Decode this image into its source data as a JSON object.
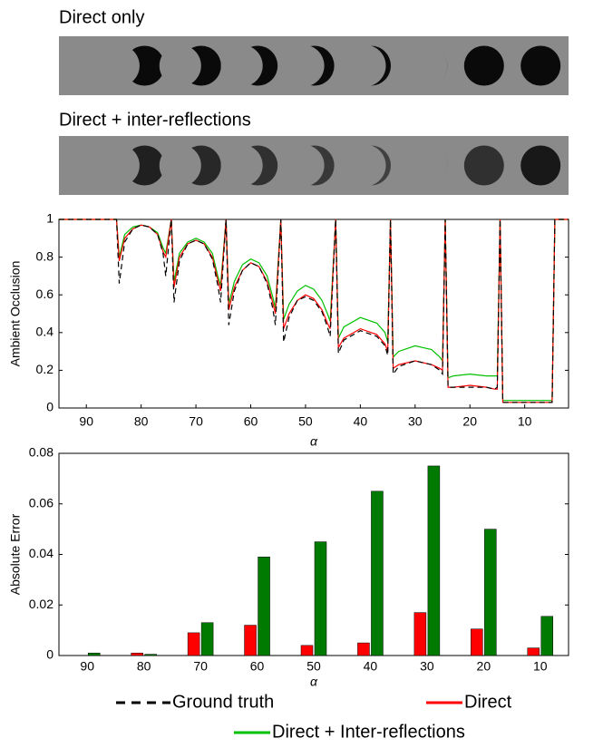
{
  "strips": [
    "Direct only",
    "Direct + inter-reflections"
  ],
  "chart_data": [
    {
      "type": "line",
      "xlabel": "α",
      "ylabel": "Ambient Occlusion",
      "xlim": [
        95,
        2
      ],
      "xticks": [
        90,
        80,
        70,
        60,
        50,
        40,
        30,
        20,
        10
      ],
      "ylim": [
        0,
        1
      ],
      "yticks": [
        0,
        0.2,
        0.4,
        0.6,
        0.8,
        1
      ],
      "grid": false,
      "x": [
        95,
        84.5,
        84,
        83,
        81.5,
        80,
        78.5,
        77,
        76,
        75.5,
        74.5,
        74,
        73,
        71.5,
        70,
        68.5,
        67,
        66,
        65.5,
        64.5,
        64,
        63,
        61.5,
        60,
        58.5,
        57,
        56,
        55.5,
        54.5,
        54,
        53,
        51.5,
        50,
        48.5,
        47,
        46,
        45.5,
        44.5,
        44,
        43,
        40,
        37,
        35.5,
        35,
        34.5,
        34,
        33,
        30,
        27,
        25.5,
        25,
        24.5,
        24,
        23,
        20,
        17,
        15.5,
        15,
        14.5,
        14,
        13,
        10,
        7,
        5,
        4.5,
        2
      ],
      "series": [
        {
          "name": "Ground truth",
          "color": "#000000",
          "dashed": true,
          "values": [
            1,
            1,
            0.66,
            0.88,
            0.95,
            0.97,
            0.96,
            0.92,
            0.82,
            0.7,
            1,
            0.56,
            0.78,
            0.87,
            0.89,
            0.87,
            0.79,
            0.65,
            0.56,
            1,
            0.44,
            0.62,
            0.73,
            0.77,
            0.75,
            0.66,
            0.53,
            0.44,
            1,
            0.35,
            0.48,
            0.57,
            0.59,
            0.57,
            0.51,
            0.43,
            0.38,
            1,
            0.29,
            0.36,
            0.41,
            0.38,
            0.33,
            0.28,
            1,
            0.18,
            0.22,
            0.25,
            0.23,
            0.2,
            0.18,
            1,
            0.11,
            0.11,
            0.11,
            0.11,
            0.1,
            0.11,
            1,
            0.03,
            0.03,
            0.03,
            0.03,
            0.03,
            1,
            1
          ]
        },
        {
          "name": "Direct",
          "color": "#ff0000",
          "dashed": false,
          "values": [
            1,
            1,
            0.78,
            0.9,
            0.95,
            0.97,
            0.96,
            0.92,
            0.83,
            0.8,
            1,
            0.64,
            0.8,
            0.87,
            0.89,
            0.87,
            0.8,
            0.68,
            0.62,
            1,
            0.52,
            0.64,
            0.73,
            0.77,
            0.75,
            0.67,
            0.56,
            0.5,
            1,
            0.42,
            0.5,
            0.57,
            0.6,
            0.58,
            0.52,
            0.45,
            0.42,
            1,
            0.32,
            0.37,
            0.42,
            0.39,
            0.34,
            0.3,
            1,
            0.21,
            0.23,
            0.25,
            0.23,
            0.21,
            0.2,
            1,
            0.11,
            0.11,
            0.12,
            0.11,
            0.1,
            0.1,
            1,
            0.03,
            0.03,
            0.03,
            0.03,
            0.03,
            1,
            1
          ]
        },
        {
          "name": "Direct + Inter-reflections",
          "color": "#00c000",
          "dashed": false,
          "values": [
            1,
            1,
            0.8,
            0.92,
            0.96,
            0.97,
            0.96,
            0.93,
            0.85,
            0.82,
            1,
            0.67,
            0.82,
            0.88,
            0.9,
            0.88,
            0.82,
            0.7,
            0.65,
            1,
            0.55,
            0.67,
            0.76,
            0.79,
            0.77,
            0.7,
            0.59,
            0.53,
            1,
            0.47,
            0.55,
            0.62,
            0.65,
            0.63,
            0.57,
            0.5,
            0.46,
            1,
            0.37,
            0.43,
            0.48,
            0.45,
            0.4,
            0.35,
            1,
            0.27,
            0.3,
            0.33,
            0.31,
            0.27,
            0.25,
            1,
            0.16,
            0.17,
            0.18,
            0.17,
            0.17,
            0.17,
            1,
            0.04,
            0.04,
            0.04,
            0.04,
            0.04,
            1,
            1
          ]
        }
      ]
    },
    {
      "type": "bar",
      "xlabel": "α",
      "ylabel": "Absolute Error",
      "categories": [
        "90",
        "80",
        "70",
        "60",
        "50",
        "40",
        "30",
        "20",
        "10"
      ],
      "ylim": [
        0,
        0.08
      ],
      "yticks": [
        0,
        0.02,
        0.04,
        0.06,
        0.08
      ],
      "grid": false,
      "series": [
        {
          "color": "#ff0000",
          "values": [
            0,
            0.001,
            0.009,
            0.012,
            0.004,
            0.005,
            0.017,
            0.0105,
            0.003
          ]
        },
        {
          "color": "#007a00",
          "values": [
            0.001,
            0.0005,
            0.013,
            0.039,
            0.045,
            0.065,
            0.075,
            0.05,
            0.0155
          ]
        }
      ]
    }
  ]
}
